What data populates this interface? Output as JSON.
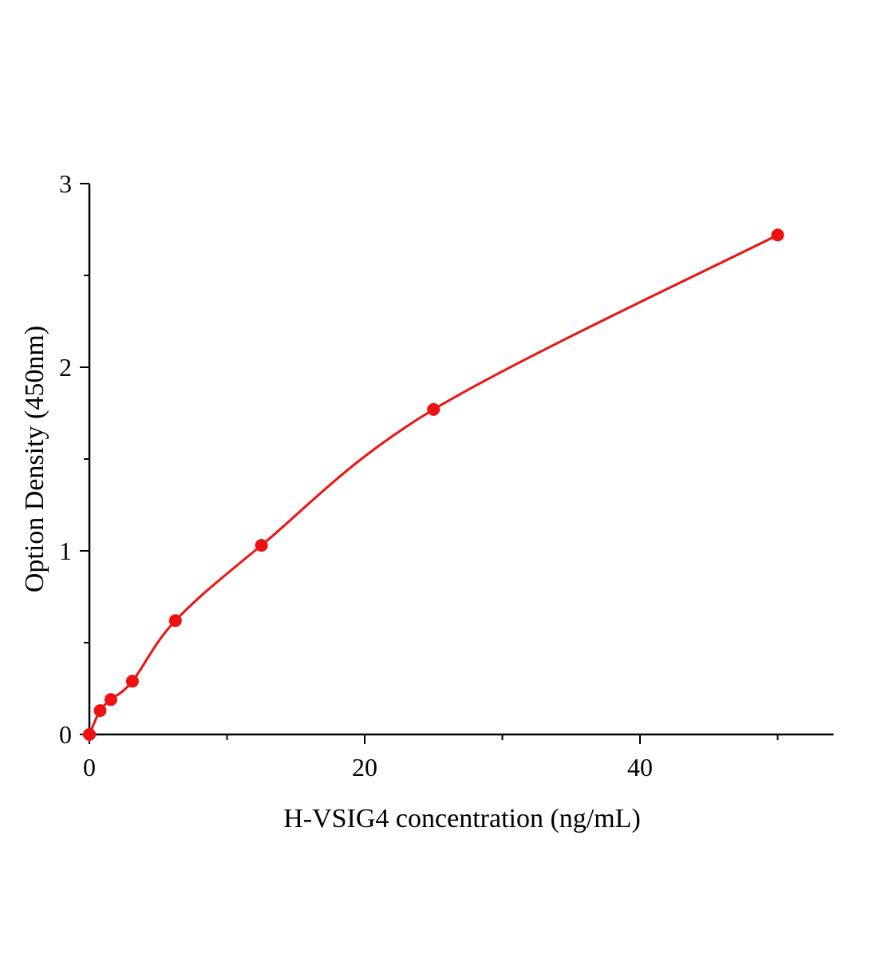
{
  "chart_data": {
    "type": "scatter",
    "title": "",
    "xlabel": "H-VSIG4 concentration (ng/mL)",
    "ylabel": "Option Density (450nm)",
    "xlim": [
      0,
      54
    ],
    "ylim": [
      0,
      3
    ],
    "x_ticks": [
      0,
      20,
      40
    ],
    "x_minor_ticks": [
      10,
      30,
      50
    ],
    "y_ticks": [
      0,
      1,
      2,
      3
    ],
    "y_minor_ticks": [
      0.5,
      1.5,
      2.5
    ],
    "grid": false,
    "legend": "none",
    "series": [
      {
        "color": "#ee1111",
        "marker": "circle",
        "fit_line": true,
        "x": [
          0,
          0.78,
          1.56,
          3.125,
          6.25,
          12.5,
          25,
          50
        ],
        "y": [
          0.0,
          0.13,
          0.19,
          0.29,
          0.62,
          1.03,
          1.77,
          2.72
        ]
      }
    ]
  }
}
